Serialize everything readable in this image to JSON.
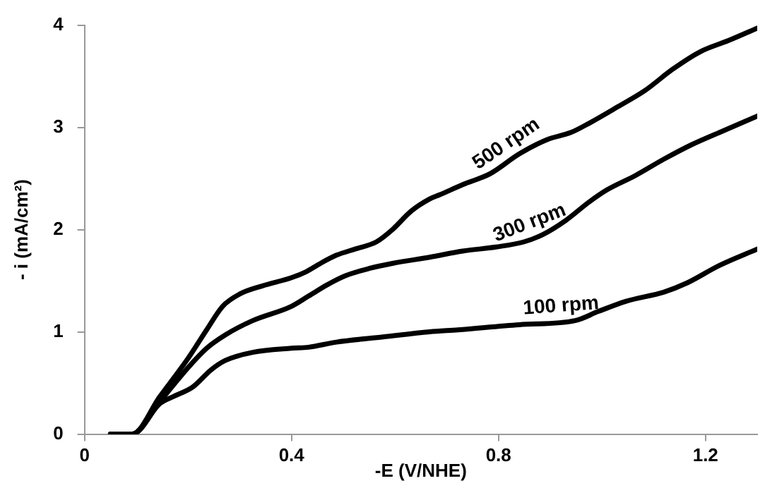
{
  "chart_data": {
    "type": "line",
    "xlabel": "-E (V/NHE)",
    "ylabel": "- i (mA/cm²)",
    "xlim": [
      0,
      1.3
    ],
    "xticks": [
      0,
      0.4,
      0.8,
      1.2
    ],
    "ylim": [
      0,
      4
    ],
    "yticks": [
      0,
      1,
      2,
      3,
      4
    ],
    "grid": false,
    "legend": false,
    "marker": "none",
    "line_style": "solid",
    "series": [
      {
        "name": "500 rpm",
        "color": "#000000",
        "x": [
          0.05,
          0.092,
          0.146,
          0.2,
          0.236,
          0.267,
          0.3,
          0.344,
          0.4,
          0.429,
          0.456,
          0.487,
          0.523,
          0.564,
          0.595,
          0.631,
          0.667,
          0.686,
          0.731,
          0.785,
          0.84,
          0.894,
          0.94,
          0.975,
          1.03,
          1.083,
          1.137,
          1.19,
          1.245,
          1.3
        ],
        "values": [
          0,
          0,
          0.37,
          0.74,
          1.02,
          1.25,
          1.37,
          1.45,
          1.53,
          1.59,
          1.67,
          1.75,
          1.81,
          1.88,
          2.0,
          2.18,
          2.3,
          2.34,
          2.44,
          2.55,
          2.74,
          2.88,
          2.95,
          3.04,
          3.2,
          3.36,
          3.57,
          3.74,
          3.85,
          3.97
        ]
      },
      {
        "name": "300 rpm",
        "color": "#000000",
        "x": [
          0.05,
          0.092,
          0.146,
          0.2,
          0.236,
          0.272,
          0.325,
          0.4,
          0.433,
          0.469,
          0.505,
          0.55,
          0.595,
          0.667,
          0.731,
          0.795,
          0.849,
          0.885,
          0.93,
          0.975,
          1.01,
          1.065,
          1.12,
          1.173,
          1.236,
          1.3
        ],
        "values": [
          0,
          0,
          0.32,
          0.65,
          0.84,
          0.97,
          1.11,
          1.25,
          1.35,
          1.46,
          1.55,
          1.62,
          1.67,
          1.73,
          1.79,
          1.83,
          1.88,
          1.95,
          2.09,
          2.27,
          2.39,
          2.53,
          2.69,
          2.83,
          2.97,
          3.11
        ]
      },
      {
        "name": "100 rpm",
        "color": "#000000",
        "x": [
          0.05,
          0.092,
          0.146,
          0.173,
          0.209,
          0.245,
          0.272,
          0.325,
          0.4,
          0.433,
          0.487,
          0.577,
          0.667,
          0.722,
          0.84,
          0.948,
          0.993,
          1.047,
          1.12,
          1.165,
          1.227,
          1.3
        ],
        "values": [
          0,
          0,
          0.3,
          0.37,
          0.46,
          0.63,
          0.72,
          0.8,
          0.84,
          0.85,
          0.9,
          0.95,
          1.0,
          1.02,
          1.07,
          1.11,
          1.2,
          1.3,
          1.39,
          1.48,
          1.65,
          1.81
        ]
      }
    ]
  }
}
